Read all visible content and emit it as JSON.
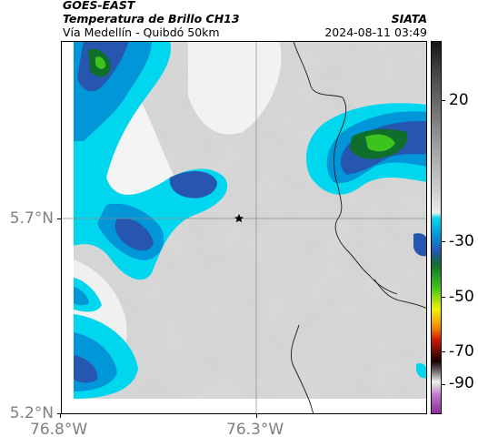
{
  "header": {
    "product": "GOES-EAST",
    "title": "Temperatura de Brillo CH13",
    "subtitle": "Vía Medellín - Quibdó 50km",
    "org": "SIATA",
    "datetime": "2024-08-11 03:49"
  },
  "map": {
    "lat_labels": [
      "5.7°N",
      "5.2°N"
    ],
    "lon_labels": [
      "76.8°W",
      "76.3°W"
    ],
    "marker": "star-marker",
    "colorbar": {
      "labels": [
        "20",
        "-30",
        "-50",
        "-70",
        "-90"
      ],
      "palette": [
        {
          "color": "#141414"
        },
        {
          "color": "#444444"
        },
        {
          "color": "#7a7a7a"
        },
        {
          "color": "#a8a8a8"
        },
        {
          "color": "#cfcfcf"
        },
        {
          "color": "#ececec"
        },
        {
          "color": "#00d7ef"
        },
        {
          "color": "#0096d8"
        },
        {
          "color": "#2656b0"
        },
        {
          "color": "#0f6e2c"
        },
        {
          "color": "#3cc31d"
        },
        {
          "color": "#f2f200"
        },
        {
          "color": "#f28800"
        },
        {
          "color": "#d41a00"
        },
        {
          "color": "#1a0000"
        },
        {
          "color": "#7a7a7a"
        },
        {
          "color": "#f0f0f0"
        },
        {
          "color": "#c079c8"
        },
        {
          "color": "#8f2f9e"
        }
      ]
    }
  }
}
